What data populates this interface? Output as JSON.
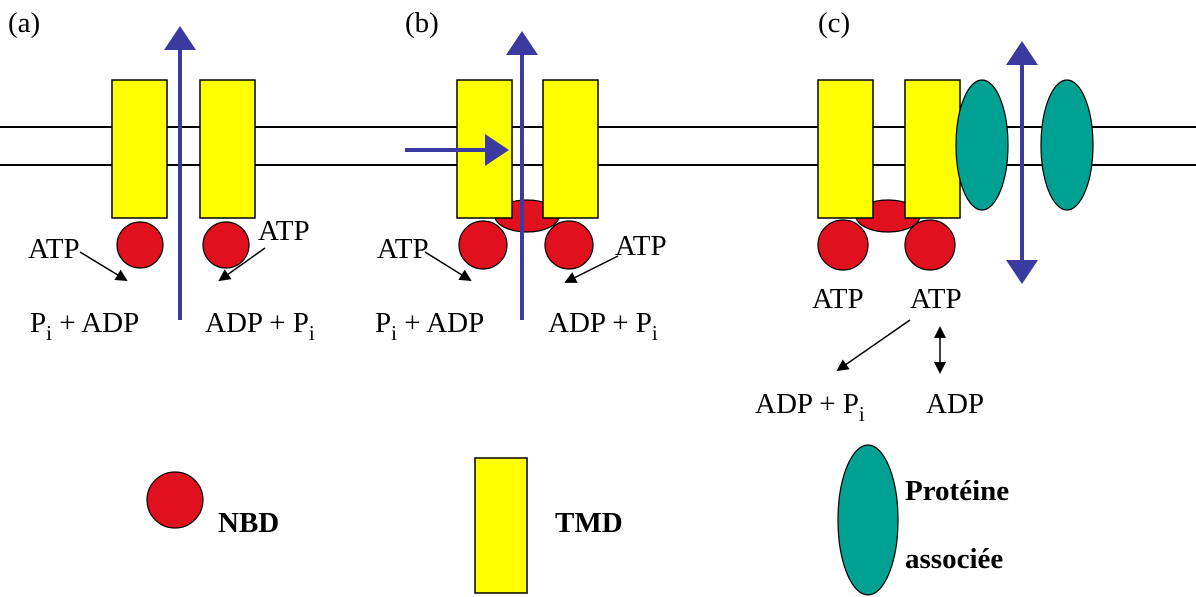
{
  "panels": [
    {
      "label": "(a)",
      "atp_left": "ATP",
      "atp_right": "ATP",
      "product_left": {
        "p": "P",
        "sub": "i",
        "rest": " + ADP"
      },
      "product_right": {
        "text": "ADP + P",
        "sub": "i"
      }
    },
    {
      "label": "(b)",
      "atp_left": "ATP",
      "atp_right": "ATP",
      "product_left": {
        "p": "P",
        "sub": "i",
        "rest": " + ADP"
      },
      "product_right": {
        "text": "ADP + P",
        "sub": "i"
      }
    },
    {
      "label": "(c)",
      "atp_left": "ATP",
      "atp_right": "ATP",
      "product_left": {
        "text": "ADP + P",
        "sub": "i"
      },
      "product_right": "ADP"
    }
  ],
  "legend": {
    "nbd": "NBD",
    "tmd": "TMD",
    "protein_line1": "Protéine",
    "protein_line2": "associée"
  }
}
